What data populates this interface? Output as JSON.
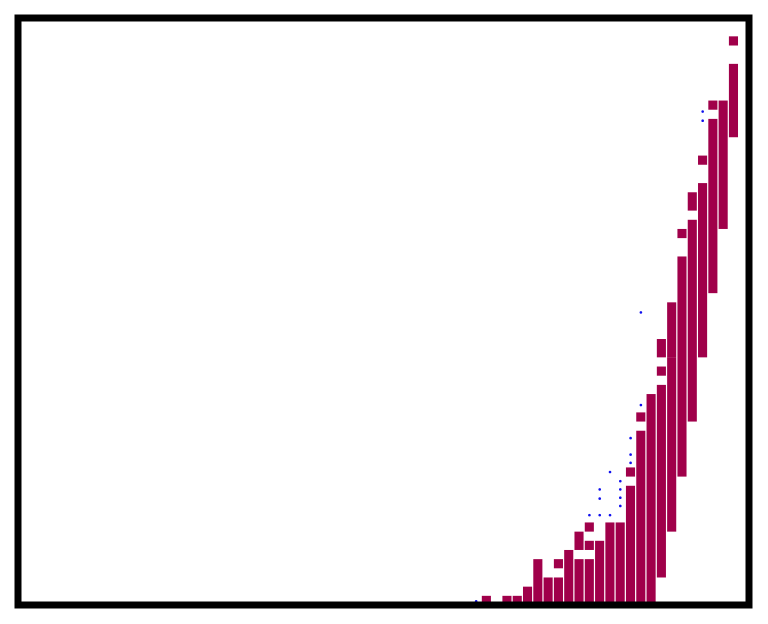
{
  "chart_data": {
    "type": "bar",
    "title": "",
    "xlabel": "",
    "ylabel": "",
    "grid": false,
    "legend": "none",
    "colors": {
      "bar": "#a0004a",
      "point": "#1010ee",
      "frame": "#000000",
      "background": "#ffffff"
    },
    "xlim": [
      0,
      71
    ],
    "ylim": [
      0,
      64
    ],
    "bars": [
      {
        "x": 45,
        "y0": 0,
        "y1": 1
      },
      {
        "x": 47,
        "y0": 0,
        "y1": 1
      },
      {
        "x": 48,
        "y0": 0,
        "y1": 1
      },
      {
        "x": 49,
        "y0": 0,
        "y1": 2
      },
      {
        "x": 50,
        "y0": 0,
        "y1": 5
      },
      {
        "x": 51,
        "y0": 0,
        "y1": 3
      },
      {
        "x": 52,
        "y0": 0,
        "y1": 3
      },
      {
        "x": 52,
        "y0": 4,
        "y1": 5
      },
      {
        "x": 53,
        "y0": 0,
        "y1": 6
      },
      {
        "x": 54,
        "y0": 0,
        "y1": 5
      },
      {
        "x": 54,
        "y0": 6,
        "y1": 8
      },
      {
        "x": 55,
        "y0": 0,
        "y1": 5
      },
      {
        "x": 55,
        "y0": 6,
        "y1": 7
      },
      {
        "x": 55,
        "y0": 8,
        "y1": 9
      },
      {
        "x": 56,
        "y0": 0,
        "y1": 7
      },
      {
        "x": 57,
        "y0": 0,
        "y1": 9
      },
      {
        "x": 58,
        "y0": 0,
        "y1": 9
      },
      {
        "x": 59,
        "y0": 0,
        "y1": 13
      },
      {
        "x": 59,
        "y0": 14,
        "y1": 15
      },
      {
        "x": 60,
        "y0": 0,
        "y1": 19
      },
      {
        "x": 60,
        "y0": 20,
        "y1": 21
      },
      {
        "x": 61,
        "y0": 0,
        "y1": 23
      },
      {
        "x": 62,
        "y0": 3,
        "y1": 24
      },
      {
        "x": 62,
        "y0": 25,
        "y1": 26
      },
      {
        "x": 62,
        "y0": 27,
        "y1": 29
      },
      {
        "x": 63,
        "y0": 8,
        "y1": 27
      },
      {
        "x": 63,
        "y0": 27,
        "y1": 33
      },
      {
        "x": 64,
        "y0": 14,
        "y1": 38
      },
      {
        "x": 64,
        "y0": 40,
        "y1": 41
      },
      {
        "x": 65,
        "y0": 20,
        "y1": 42
      },
      {
        "x": 65,
        "y0": 43,
        "y1": 45
      },
      {
        "x": 66,
        "y0": 27,
        "y1": 46
      },
      {
        "x": 66,
        "y0": 48,
        "y1": 49
      },
      {
        "x": 67,
        "y0": 34,
        "y1": 53
      },
      {
        "x": 67,
        "y0": 54,
        "y1": 55
      },
      {
        "x": 68,
        "y0": 41,
        "y1": 55
      },
      {
        "x": 69,
        "y0": 51,
        "y1": 59
      },
      {
        "x": 69,
        "y0": 61,
        "y1": 62
      }
    ],
    "points": [
      {
        "x": 44,
        "y": 0.4
      },
      {
        "x": 55,
        "y": 9.8
      },
      {
        "x": 56,
        "y": 9.8
      },
      {
        "x": 56,
        "y": 11.6
      },
      {
        "x": 56,
        "y": 12.6
      },
      {
        "x": 57,
        "y": 9.8
      },
      {
        "x": 57,
        "y": 14.5
      },
      {
        "x": 58,
        "y": 10.8
      },
      {
        "x": 58,
        "y": 11.7
      },
      {
        "x": 58,
        "y": 12.6
      },
      {
        "x": 58,
        "y": 13.5
      },
      {
        "x": 59,
        "y": 15.5
      },
      {
        "x": 59,
        "y": 16.4
      },
      {
        "x": 59,
        "y": 18.2
      },
      {
        "x": 60,
        "y": 21.8
      },
      {
        "x": 60,
        "y": 31.9
      },
      {
        "x": 66,
        "y": 52.8
      },
      {
        "x": 66,
        "y": 53.8
      },
      {
        "x": 69,
        "y": 63.8
      }
    ]
  }
}
